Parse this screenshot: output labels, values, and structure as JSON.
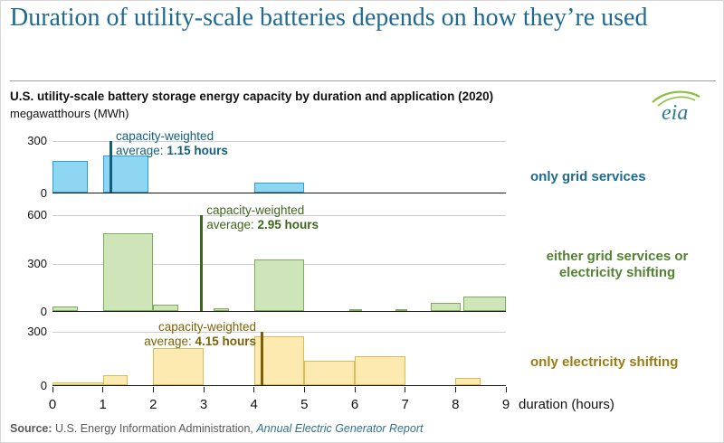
{
  "page": {
    "title": "Duration of utility-scale batteries depends on how they’re used",
    "subtitle": "U.S. utility-scale battery storage energy capacity by duration and application (2020)",
    "units": "megawatthours (MWh)",
    "logo_text": "eia",
    "source_prefix": "Source:",
    "source_body": " U.S. Energy Information Administration, ",
    "source_report": "Annual Electric Generator Report"
  },
  "x_axis": {
    "ticks": [
      "0",
      "1",
      "2",
      "3",
      "4",
      "5",
      "6",
      "7",
      "8",
      "9"
    ],
    "label": "duration (hours)"
  },
  "chart_data": [
    {
      "type": "bar",
      "title": "only grid services",
      "series_label_lines": [
        "only grid services"
      ],
      "label_color": "#1d6a8d",
      "xlabel": "duration (hours)",
      "ylabel": "megawatthours (MWh)",
      "xlim": [
        0,
        9
      ],
      "ylim": [
        0,
        300
      ],
      "yticks": [
        0,
        300
      ],
      "bar_fill": "#8fd6f3",
      "bar_stroke": "#2da0d3",
      "bars": [
        {
          "x0": 0.0,
          "x1": 0.7,
          "value": 180
        },
        {
          "x0": 1.0,
          "x1": 1.9,
          "value": 210
        },
        {
          "x0": 4.0,
          "x1": 5.0,
          "value": 55
        }
      ],
      "avg_line": {
        "x": 1.15,
        "color": "#135e7e"
      },
      "annotation": {
        "line1": "capacity-weighted",
        "line2_label": "average: ",
        "line2_value": "1.15 hours",
        "color": "#135e7e",
        "side": "right"
      }
    },
    {
      "type": "bar",
      "title": "either grid services or electricity shifting",
      "series_label_lines": [
        "either grid services or",
        "electricity shifting"
      ],
      "label_color": "#538232",
      "xlabel": "duration (hours)",
      "ylabel": "megawatthours (MWh)",
      "xlim": [
        0,
        9
      ],
      "ylim": [
        0,
        600
      ],
      "yticks": [
        0,
        300,
        600
      ],
      "bar_fill": "#cde5b8",
      "bar_stroke": "#7cab5e",
      "bars": [
        {
          "x0": 0.0,
          "x1": 0.5,
          "value": 30
        },
        {
          "x0": 1.0,
          "x1": 2.0,
          "value": 480
        },
        {
          "x0": 2.0,
          "x1": 2.5,
          "value": 40
        },
        {
          "x0": 3.2,
          "x1": 3.5,
          "value": 15
        },
        {
          "x0": 4.0,
          "x1": 5.0,
          "value": 320
        },
        {
          "x0": 5.9,
          "x1": 6.15,
          "value": 12
        },
        {
          "x0": 6.8,
          "x1": 7.05,
          "value": 12
        },
        {
          "x0": 7.5,
          "x1": 8.1,
          "value": 48
        },
        {
          "x0": 8.15,
          "x1": 9.0,
          "value": 90
        }
      ],
      "avg_line": {
        "x": 2.95,
        "color": "#3d661d"
      },
      "annotation": {
        "line1": "capacity-weighted",
        "line2_label": "average: ",
        "line2_value": "2.95 hours",
        "color": "#3d661d",
        "side": "right"
      }
    },
    {
      "type": "bar",
      "title": "only electricity shifting",
      "series_label_lines": [
        "only electricity shifting"
      ],
      "label_color": "#9a7b12",
      "xlabel": "duration (hours)",
      "ylabel": "megawatthours (MWh)",
      "xlim": [
        0,
        9
      ],
      "ylim": [
        0,
        300
      ],
      "yticks": [
        0,
        300
      ],
      "bar_fill": "#fdeab0",
      "bar_stroke": "#d8bc55",
      "bars": [
        {
          "x0": 0.0,
          "x1": 1.0,
          "value": 15
        },
        {
          "x0": 1.0,
          "x1": 1.5,
          "value": 55
        },
        {
          "x0": 2.0,
          "x1": 3.0,
          "value": 205
        },
        {
          "x0": 4.0,
          "x1": 5.0,
          "value": 270
        },
        {
          "x0": 5.0,
          "x1": 6.0,
          "value": 135
        },
        {
          "x0": 6.0,
          "x1": 7.0,
          "value": 160
        },
        {
          "x0": 8.0,
          "x1": 8.5,
          "value": 40
        }
      ],
      "avg_line": {
        "x": 4.15,
        "color": "#7c6205"
      },
      "annotation": {
        "line1": "capacity-weighted",
        "line2_label": "average: ",
        "line2_value": "4.15 hours",
        "color": "#7c6205",
        "side": "left"
      }
    }
  ]
}
